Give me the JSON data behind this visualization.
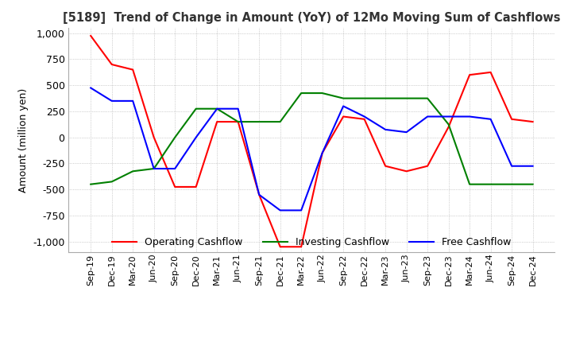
{
  "title": "[5189]  Trend of Change in Amount (YoY) of 12Mo Moving Sum of Cashflows",
  "ylabel": "Amount (million yen)",
  "ylim": [
    -1100,
    1050
  ],
  "yticks": [
    -1000,
    -750,
    -500,
    -250,
    0,
    250,
    500,
    750,
    1000
  ],
  "x_labels": [
    "Sep-19",
    "Dec-19",
    "Mar-20",
    "Jun-20",
    "Sep-20",
    "Dec-20",
    "Mar-21",
    "Jun-21",
    "Sep-21",
    "Dec-21",
    "Mar-22",
    "Jun-22",
    "Sep-22",
    "Dec-22",
    "Mar-23",
    "Jun-23",
    "Sep-23",
    "Dec-23",
    "Mar-24",
    "Jun-24",
    "Sep-24",
    "Dec-24"
  ],
  "operating": [
    975,
    700,
    650,
    0,
    -475,
    -475,
    150,
    150,
    -550,
    -1050,
    -1050,
    -150,
    200,
    175,
    -275,
    -325,
    -275,
    100,
    600,
    625,
    175,
    150
  ],
  "investing": [
    -450,
    -425,
    -325,
    -300,
    0,
    275,
    275,
    150,
    150,
    150,
    425,
    425,
    375,
    375,
    375,
    375,
    375,
    125,
    -450,
    -450,
    -450,
    -450
  ],
  "free": [
    475,
    350,
    350,
    -300,
    -300,
    0,
    275,
    275,
    -550,
    -700,
    -700,
    -150,
    300,
    200,
    75,
    50,
    200,
    200,
    200,
    175,
    -275,
    -275
  ],
  "operating_color": "#ff0000",
  "investing_color": "#008000",
  "free_color": "#0000ff",
  "bg_color": "#ffffff",
  "grid_color": "#aaaaaa"
}
